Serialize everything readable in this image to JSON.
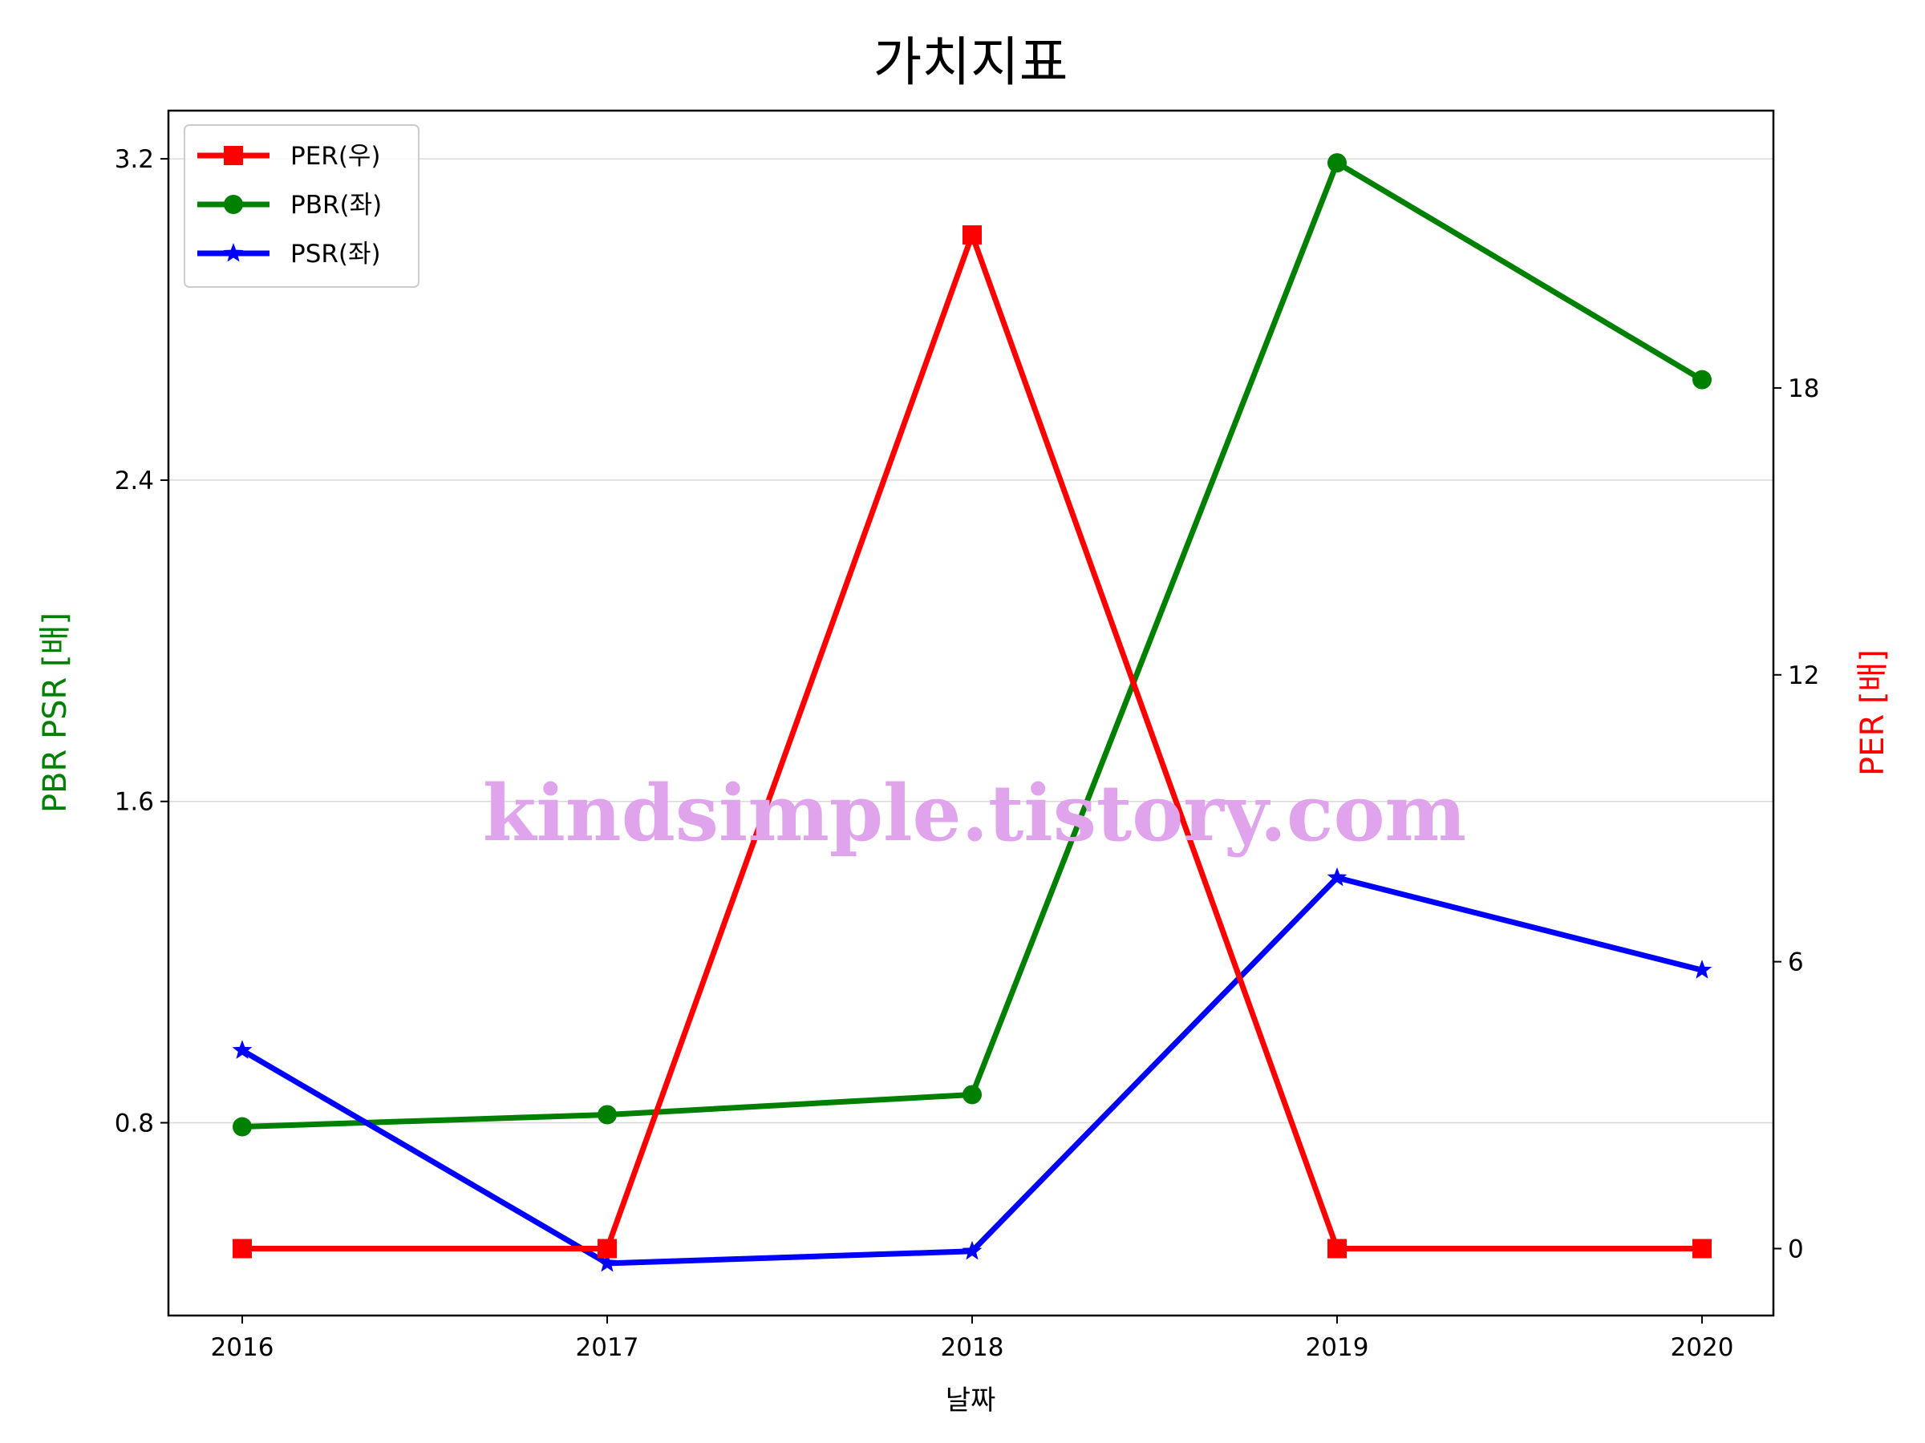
{
  "chart_data": {
    "type": "line",
    "title": "가치지표",
    "xlabel": "날짜",
    "ylabel_left": "PBR PSR [배]",
    "ylabel_right": "PER [배]",
    "x": [
      "2016",
      "2017",
      "2018",
      "2019",
      "2020"
    ],
    "ylim_left": [
      0.32,
      3.32
    ],
    "yticks_left": [
      "0.8",
      "1.6",
      "2.4",
      "3.2"
    ],
    "ylim_right": [
      -1.4,
      23.8
    ],
    "yticks_right": [
      "0",
      "6",
      "12",
      "18"
    ],
    "grid": "horizontal (left axis)",
    "legend_position": "upper left",
    "series": [
      {
        "name": "PER(우)",
        "axis": "right",
        "color": "#ff0000",
        "marker": "square",
        "values": [
          0,
          0,
          21.2,
          0,
          0
        ]
      },
      {
        "name": "PBR(좌)",
        "axis": "left",
        "color": "#008000",
        "marker": "circle",
        "values": [
          0.79,
          0.82,
          0.87,
          3.19,
          2.65
        ]
      },
      {
        "name": "PSR(좌)",
        "axis": "left",
        "color": "#0000ff",
        "marker": "star",
        "values": [
          0.98,
          0.45,
          0.48,
          1.41,
          1.18
        ]
      }
    ]
  },
  "watermark": "kindsimple.tistory.com",
  "colors": {
    "left_axis_label": "#008000",
    "right_axis_label": "#ff0000",
    "watermark": "#e0a4ec",
    "grid": "#d9d9d9"
  }
}
